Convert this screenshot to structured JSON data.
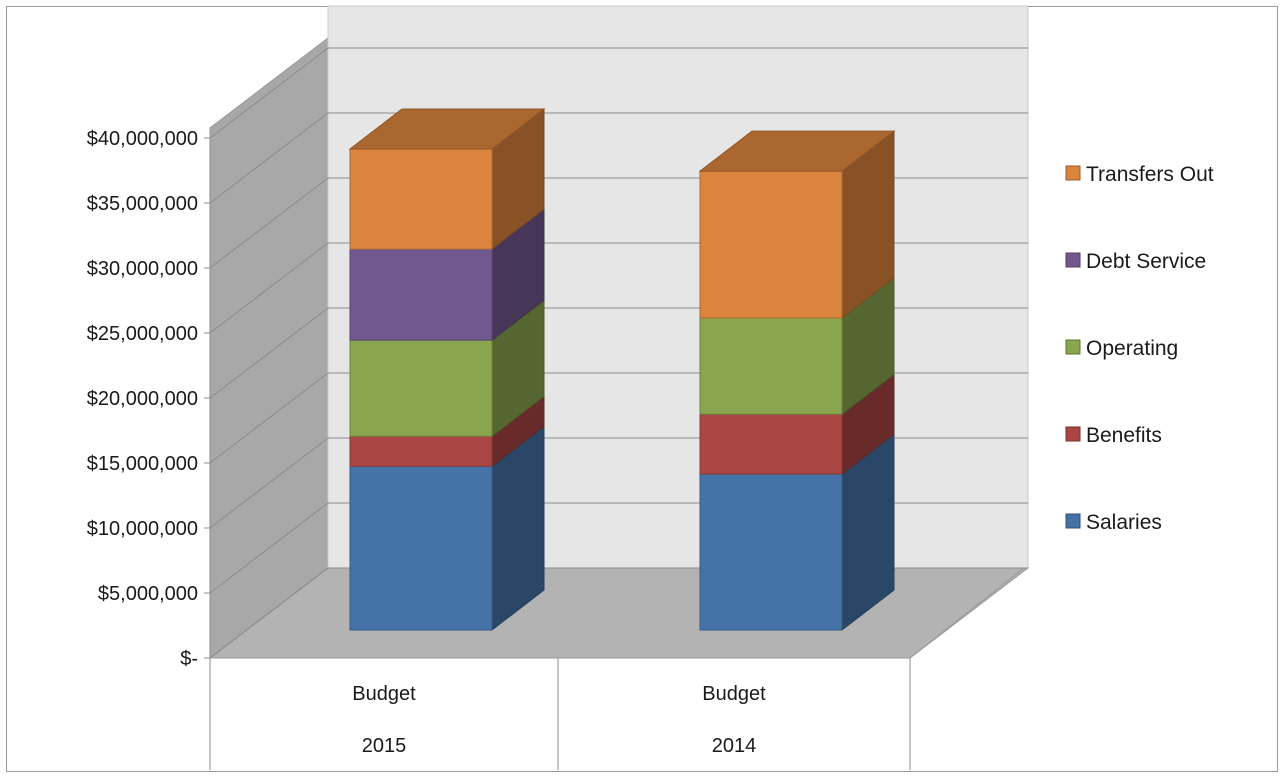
{
  "chart_data": {
    "type": "bar",
    "stacked": true,
    "three_d": true,
    "categories": [
      [
        "Budget",
        "2015"
      ],
      [
        "Budget",
        "2014"
      ]
    ],
    "series": [
      {
        "name": "Salaries",
        "color": "#4572a7",
        "values": [
          12600000,
          12000000
        ]
      },
      {
        "name": "Benefits",
        "color": "#aa4643",
        "values": [
          2300000,
          4600000
        ]
      },
      {
        "name": "Operating",
        "color": "#89a54e",
        "values": [
          7400000,
          7400000
        ]
      },
      {
        "name": "Debt Service",
        "color": "#71588f",
        "values": [
          7000000,
          0
        ]
      },
      {
        "name": "Transfers Out",
        "color": "#db843d",
        "values": [
          7700000,
          11300000
        ]
      }
    ],
    "y_ticks": [
      "$-",
      "$5,000,000",
      "$10,000,000",
      "$15,000,000",
      "$20,000,000",
      "$25,000,000",
      "$30,000,000",
      "$35,000,000",
      "$40,000,000"
    ],
    "ylim": [
      0,
      40000000
    ],
    "ytick_step": 5000000,
    "legend_position": "right",
    "legend_order": [
      "Transfers Out",
      "Debt Service",
      "Operating",
      "Benefits",
      "Salaries"
    ],
    "grid": true
  }
}
